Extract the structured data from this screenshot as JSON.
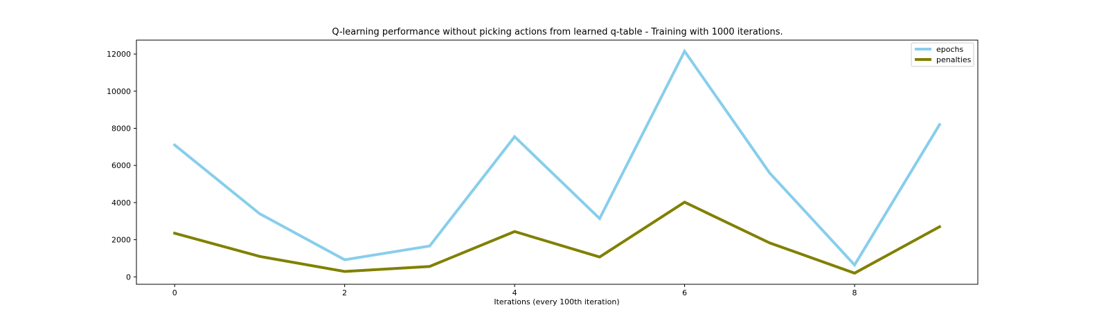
{
  "chart_data": {
    "type": "line",
    "title": "Q-learning performance without picking actions from learned q-table - Training with 1000 iterations.",
    "xlabel": "Iterations (every 100th iteration)",
    "ylabel": "",
    "x": [
      0,
      1,
      2,
      3,
      4,
      5,
      6,
      7,
      8,
      9
    ],
    "xticks": [
      0,
      2,
      4,
      6,
      8
    ],
    "yticks": [
      0,
      2000,
      4000,
      6000,
      8000,
      10000,
      12000
    ],
    "xlim": [
      -0.45,
      9.45
    ],
    "ylim": [
      -400,
      12750
    ],
    "grid": false,
    "legend_position": "top-right",
    "series": [
      {
        "name": "epochs",
        "color": "#87ceeb",
        "values": [
          7100,
          3400,
          920,
          1660,
          7550,
          3140,
          12150,
          5600,
          640,
          8200
        ]
      },
      {
        "name": "penalties",
        "color": "#808000",
        "values": [
          2350,
          1100,
          290,
          560,
          2440,
          1070,
          4020,
          1830,
          200,
          2700
        ]
      }
    ]
  }
}
